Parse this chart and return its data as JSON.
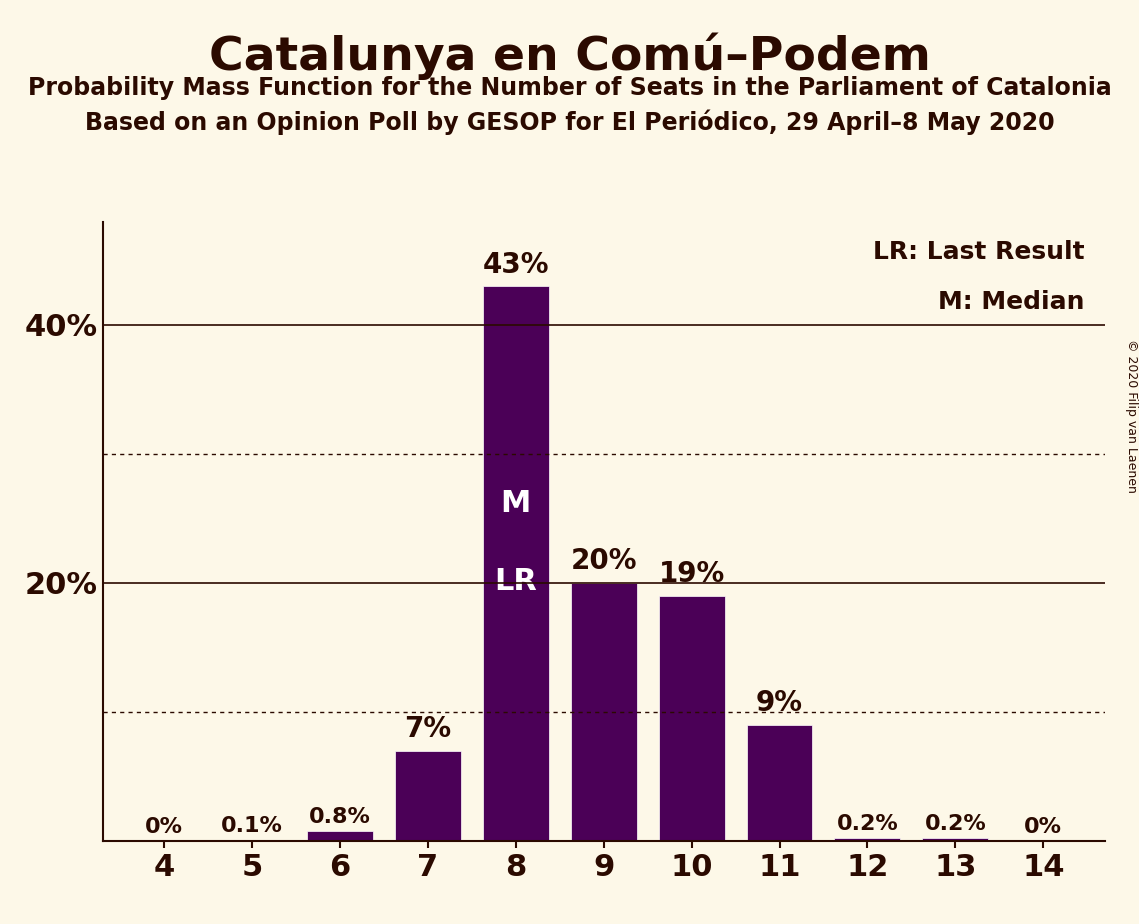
{
  "title": "Catalunya en Comú–Podem",
  "subtitle1": "Probability Mass Function for the Number of Seats in the Parliament of Catalonia",
  "subtitle2": "Based on an Opinion Poll by GESOP for El Periódico, 29 April–8 May 2020",
  "copyright": "© 2020 Filip van Laenen",
  "categories": [
    4,
    5,
    6,
    7,
    8,
    9,
    10,
    11,
    12,
    13,
    14
  ],
  "values": [
    0.0,
    0.1,
    0.8,
    7.0,
    43.0,
    20.0,
    19.0,
    9.0,
    0.2,
    0.2,
    0.0
  ],
  "labels": [
    "0%",
    "0.1%",
    "0.8%",
    "7%",
    "43%",
    "20%",
    "19%",
    "9%",
    "0.2%",
    "0.2%",
    "0%"
  ],
  "bar_color": "#4b0057",
  "background_color": "#fdf8e8",
  "text_color": "#2b0a00",
  "median_seat": 8,
  "last_result_seat": 8,
  "legend_lr": "LR: Last Result",
  "legend_m": "M: Median",
  "dotted_lines": [
    10,
    30
  ],
  "solid_lines": [
    20,
    40
  ],
  "ylim": [
    0,
    48
  ],
  "ytick_vals": [
    20,
    40
  ],
  "ytick_labels": [
    "20%",
    "40%"
  ],
  "title_fontsize": 34,
  "subtitle_fontsize": 17,
  "tick_fontsize": 22,
  "label_fontsize_large": 20,
  "label_fontsize_small": 16,
  "ml_fontsize": 22,
  "legend_fontsize": 18,
  "copyright_fontsize": 9
}
